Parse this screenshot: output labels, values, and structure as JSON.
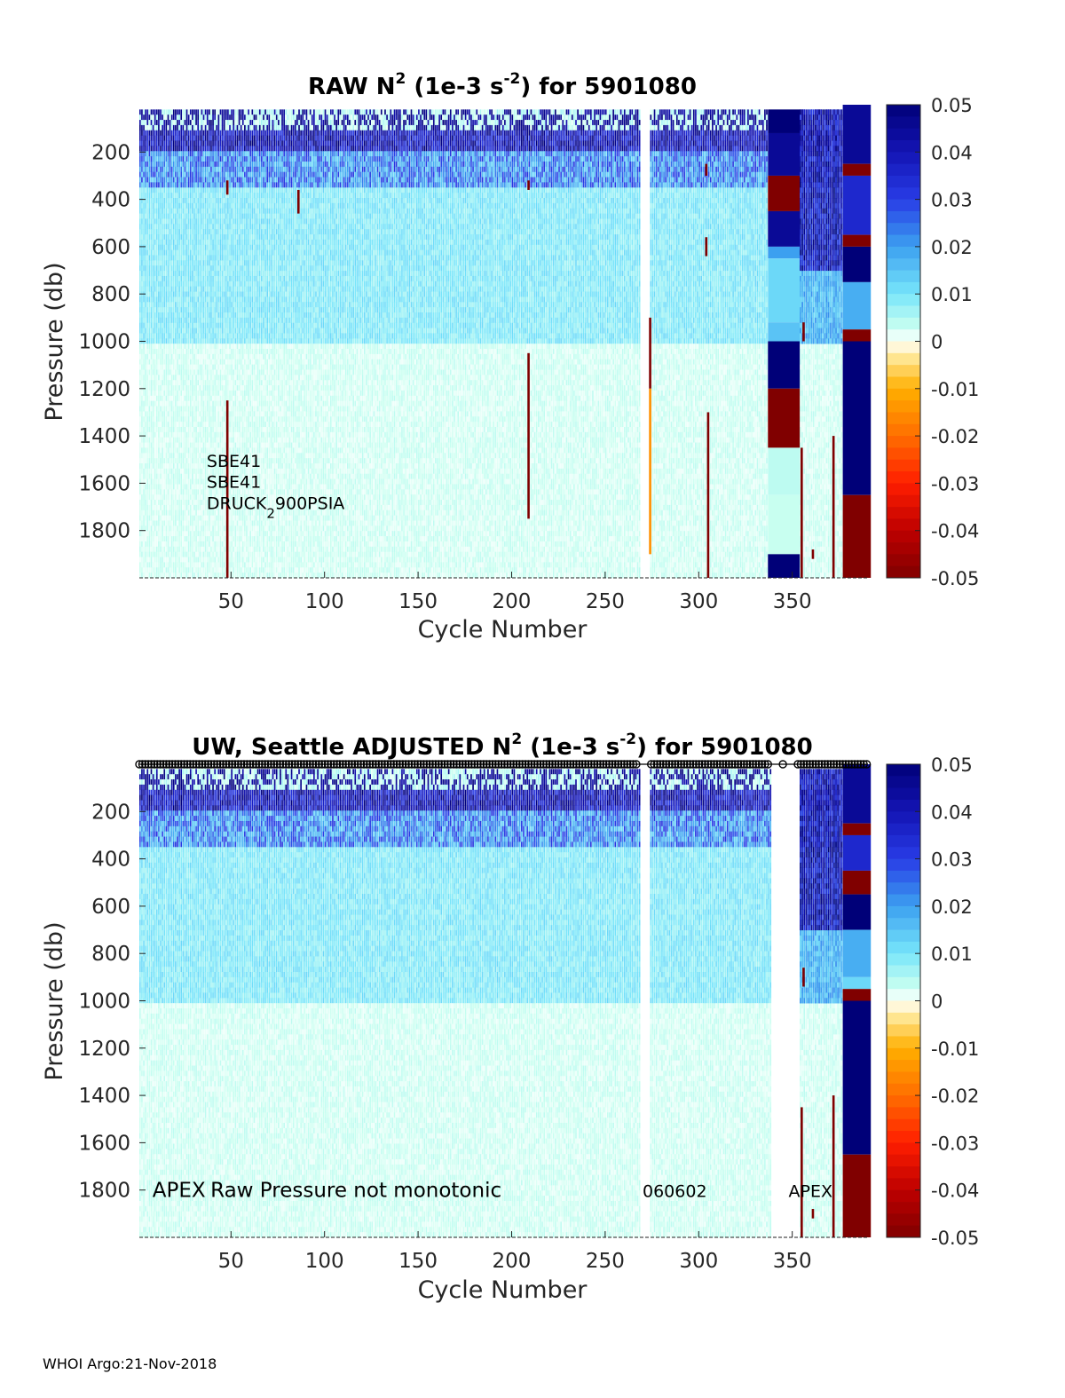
{
  "footer": "WHOI Argo:21-Nov-2018",
  "colorbar": {
    "ticks": [
      "0.05",
      "0.04",
      "0.03",
      "0.02",
      "0.01",
      "0",
      "-0.01",
      "-0.02",
      "-0.03",
      "-0.04",
      "-0.05"
    ],
    "range": [
      -0.05,
      0.05
    ],
    "colormap": "jet-like: dark red (negative) through orange/yellow, white at 0, cyan, blue, dark navy (positive)"
  },
  "chart_data": [
    {
      "type": "heatmap",
      "title": {
        "pre": "RAW N",
        "sup1": "2",
        "mid": " (1e-3 s",
        "sup2": "-2",
        "post": ") for 5901080"
      },
      "xlabel": "Cycle Number",
      "ylabel": "Pressure (db)",
      "xlim": [
        1,
        390
      ],
      "ylim": [
        0,
        2000
      ],
      "y_reversed": true,
      "xticks": [
        "50",
        "100",
        "150",
        "200",
        "250",
        "300",
        "350"
      ],
      "xtick_values": [
        50,
        100,
        150,
        200,
        250,
        300,
        350
      ],
      "yticks": [
        "200",
        "400",
        "600",
        "800",
        "1000",
        "1200",
        "1400",
        "1600",
        "1800"
      ],
      "ytick_values": [
        200,
        400,
        600,
        800,
        1000,
        1200,
        1400,
        1600,
        1800
      ],
      "annotations": [
        {
          "text": "SBE41",
          "cycle": 37,
          "pressure": 1500
        },
        {
          "text": "SBE41",
          "cycle": 37,
          "pressure": 1590
        },
        {
          "text": "DRUCK",
          "sub": "2",
          "rest": "900PSIA",
          "cycle": 37,
          "pressure": 1680
        }
      ],
      "gap_cycles": [
        268,
        274
      ],
      "spikes": [
        {
          "cycle": 48,
          "p0": 320,
          "p1": 380,
          "value": -0.05
        },
        {
          "cycle": 48,
          "p0": 1250,
          "p1": 2000,
          "value": -0.05
        },
        {
          "cycle": 86,
          "p0": 360,
          "p1": 460,
          "value": -0.05
        },
        {
          "cycle": 209,
          "p0": 1050,
          "p1": 1750,
          "value": -0.05
        },
        {
          "cycle": 209,
          "p0": 320,
          "p1": 360,
          "value": -0.05
        },
        {
          "cycle": 274,
          "p0": 900,
          "p1": 1200,
          "value": -0.05
        },
        {
          "cycle": 274,
          "p0": 1200,
          "p1": 1900,
          "value": -0.015
        },
        {
          "cycle": 304,
          "p0": 250,
          "p1": 300,
          "value": -0.05
        },
        {
          "cycle": 304,
          "p0": 560,
          "p1": 640,
          "value": -0.05
        },
        {
          "cycle": 305,
          "p0": 1300,
          "p1": 2000,
          "value": -0.05
        },
        {
          "cycle": 356,
          "p0": 920,
          "p1": 1000,
          "value": -0.05
        },
        {
          "cycle": 355,
          "p0": 1450,
          "p1": 2000,
          "value": -0.05
        },
        {
          "cycle": 372,
          "p0": 1400,
          "p1": 2000,
          "value": -0.05
        },
        {
          "cycle": 361,
          "p0": 1880,
          "p1": 1920,
          "value": -0.05
        }
      ],
      "block_columns": [
        {
          "x0": 337,
          "x1": 354,
          "blocks": [
            [
              20,
              120,
              0.05
            ],
            [
              120,
              300,
              0.045
            ],
            [
              300,
              450,
              -0.05
            ],
            [
              450,
              600,
              0.045
            ],
            [
              600,
              650,
              0.02
            ],
            [
              650,
              920,
              0.012
            ],
            [
              920,
              1000,
              0.015
            ],
            [
              1000,
              1200,
              0.05
            ],
            [
              1200,
              1450,
              -0.05
            ],
            [
              1450,
              1650,
              0.004
            ],
            [
              1650,
              1900,
              0.003
            ],
            [
              1900,
              2000,
              0.05
            ]
          ]
        },
        {
          "x0": 377,
          "x1": 392,
          "blocks": [
            [
              0,
              250,
              0.045
            ],
            [
              250,
              300,
              -0.05
            ],
            [
              300,
              550,
              0.035
            ],
            [
              550,
              600,
              -0.05
            ],
            [
              600,
              750,
              0.05
            ],
            [
              750,
              950,
              0.018
            ],
            [
              950,
              1000,
              -0.05
            ],
            [
              1000,
              1650,
              0.05
            ],
            [
              1650,
              2000,
              -0.05
            ]
          ]
        }
      ]
    },
    {
      "type": "heatmap",
      "title": {
        "pre": "UW, Seattle  ADJUSTED N",
        "sup1": "2",
        "mid": " (1e-3 s",
        "sup2": "-2",
        "post": ") for 5901080"
      },
      "xlabel": "Cycle Number",
      "ylabel": "Pressure (db)",
      "xlim": [
        1,
        390
      ],
      "ylim": [
        0,
        2000
      ],
      "y_reversed": true,
      "xticks": [
        "50",
        "100",
        "150",
        "200",
        "250",
        "300",
        "350"
      ],
      "xtick_values": [
        50,
        100,
        150,
        200,
        250,
        300,
        350
      ],
      "yticks": [
        "200",
        "400",
        "600",
        "800",
        "1000",
        "1200",
        "1400",
        "1600",
        "1800"
      ],
      "ytick_values": [
        200,
        400,
        600,
        800,
        1000,
        1200,
        1400,
        1600,
        1800
      ],
      "annotations": [
        {
          "text": "APEX",
          "cycle": 8,
          "pressure": 1800,
          "large": true
        },
        {
          "text": "Raw Pressure not monotonic",
          "cycle": 39,
          "pressure": 1800,
          "large": true
        },
        {
          "text": "060602",
          "cycle": 270,
          "pressure": 1800
        },
        {
          "text": "APEX",
          "cycle": 348,
          "pressure": 1800
        }
      ],
      "gap_cycles": [
        268,
        274,
        338,
        354
      ],
      "qc_markers": "row of small circles along the top edge of the plot",
      "spikes": [
        {
          "cycle": 355,
          "p0": 1450,
          "p1": 2000,
          "value": -0.05
        },
        {
          "cycle": 356,
          "p0": 860,
          "p1": 940,
          "value": -0.05
        },
        {
          "cycle": 372,
          "p0": 1400,
          "p1": 2000,
          "value": -0.05
        },
        {
          "cycle": 361,
          "p0": 1880,
          "p1": 1920,
          "value": -0.05
        }
      ],
      "block_columns": [
        {
          "x0": 377,
          "x1": 392,
          "blocks": [
            [
              0,
              250,
              0.045
            ],
            [
              250,
              300,
              -0.05
            ],
            [
              300,
              450,
              0.035
            ],
            [
              450,
              550,
              -0.05
            ],
            [
              550,
              700,
              0.05
            ],
            [
              700,
              900,
              0.018
            ],
            [
              900,
              950,
              0.012
            ],
            [
              950,
              1000,
              -0.05
            ],
            [
              1000,
              1650,
              0.05
            ],
            [
              1650,
              2000,
              -0.05
            ]
          ]
        }
      ]
    }
  ]
}
